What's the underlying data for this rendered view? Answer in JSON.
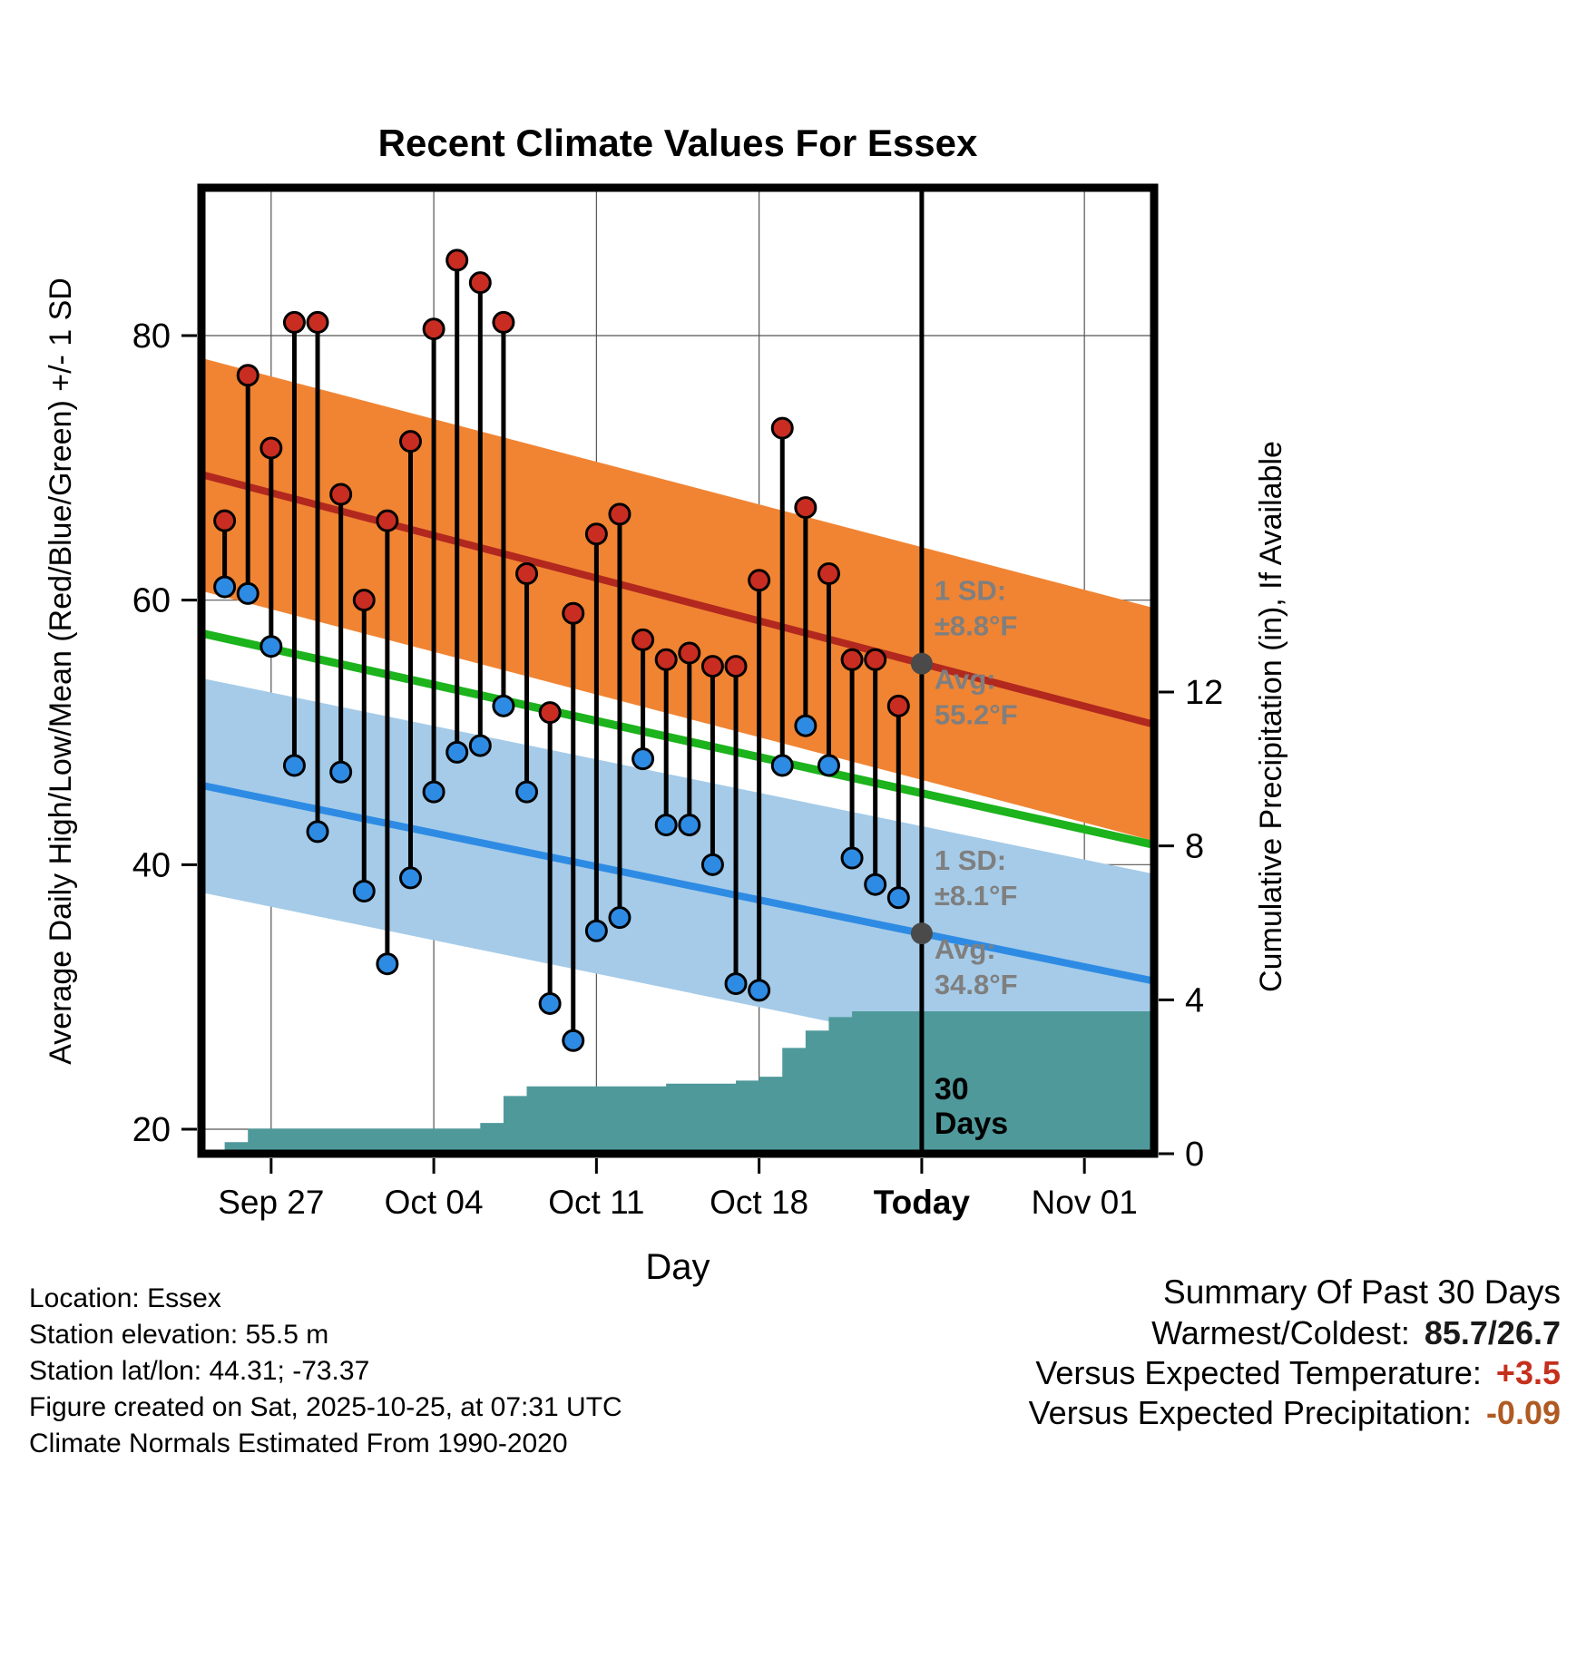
{
  "title": "Recent Climate Values For Essex",
  "chart_data": {
    "type": "line",
    "title": "Recent Climate Values For Essex",
    "xlabel": "Day",
    "ylabel_left": "Average Daily High/Low/Mean (Red/Blue/Green) +/- 1 SD",
    "ylabel_right": "Cumulative Precipitation (in), If Available",
    "grid": true,
    "x_domain": {
      "min": 0,
      "max": 41
    },
    "x_ticks": [
      {
        "day": 3,
        "label": "Sep 27",
        "bold": false
      },
      {
        "day": 10,
        "label": "Oct 04",
        "bold": false
      },
      {
        "day": 17,
        "label": "Oct 11",
        "bold": false
      },
      {
        "day": 24,
        "label": "Oct 18",
        "bold": false
      },
      {
        "day": 31,
        "label": "Today",
        "bold": true
      },
      {
        "day": 38,
        "label": "Nov 01",
        "bold": false
      }
    ],
    "y_left_ticks": [
      20,
      40,
      60,
      80
    ],
    "y_left_range": [
      18.1,
      91.2
    ],
    "y_right_ticks": [
      0,
      4,
      8,
      12
    ],
    "y_right_range": [
      0,
      14.7
    ],
    "today_day": 31,
    "normal_high": {
      "value_start": 69.5,
      "value_end": 50.6,
      "sd": 8.8
    },
    "normal_mean": {
      "value_start": 57.5,
      "value_end": 41.5
    },
    "normal_low": {
      "value_start": 46.0,
      "value_end": 31.2,
      "sd": 8.1
    },
    "daily": {
      "start_day": 1,
      "highs": [
        66,
        77,
        71.5,
        81,
        81,
        68,
        60,
        66,
        72,
        80.5,
        85.7,
        84,
        81,
        62,
        51.5,
        59,
        65,
        66.5,
        57,
        55.5,
        56,
        55,
        55,
        61.5,
        73,
        67,
        62,
        55.5,
        55.5,
        52
      ],
      "lows": [
        61,
        60.5,
        56.5,
        47.5,
        42.5,
        47,
        38,
        32.5,
        39,
        45.5,
        48.5,
        49,
        52,
        45.5,
        29.5,
        26.7,
        35,
        36,
        48,
        43,
        43,
        40,
        31,
        30.5,
        47.5,
        50.5,
        47.5,
        40.5,
        38.5,
        37.5
      ]
    },
    "precip_steps": [
      [
        0,
        0.05
      ],
      [
        1,
        0.3
      ],
      [
        2,
        0.65
      ],
      [
        12,
        0.8
      ],
      [
        13,
        1.5
      ],
      [
        14,
        1.75
      ],
      [
        20,
        1.82
      ],
      [
        23,
        1.9
      ],
      [
        24,
        2.0
      ],
      [
        25,
        2.75
      ],
      [
        26,
        3.2
      ],
      [
        27,
        3.55
      ],
      [
        28,
        3.7
      ]
    ],
    "annotations": {
      "high": {
        "sd_label": "1 SD:",
        "sd_text": "±8.8°F",
        "avg_label": "Avg:",
        "avg_text": "55.2°F",
        "avg_value": 55.2
      },
      "low": {
        "sd_label": "1 SD:",
        "sd_text": "±8.1°F",
        "avg_label": "Avg:",
        "avg_text": "34.8°F",
        "avg_value": 34.8
      },
      "period_line1": "30",
      "period_line2": "Days"
    },
    "colors": {
      "high_band": "#f08433",
      "high_line": "#b2281e",
      "low_band": "#a5cbe8",
      "low_line": "#2e8be4",
      "mean_line": "#1cb31c",
      "precip_fill": "#4f999b",
      "dot_high": "#c92d22",
      "dot_low": "#2e8be4",
      "annotation_gray": "#7f7f7f",
      "today_marker": "#4a4a4a"
    }
  },
  "footer_left": {
    "lines": [
      "Location: Essex",
      "Station elevation: 55.5 m",
      "Station lat/lon: 44.31; -73.37",
      "Figure created on Sat, 2025-10-25, at 07:31 UTC",
      "Climate Normals Estimated From 1990-2020"
    ]
  },
  "summary": {
    "title": "Summary Of Past 30 Days",
    "rows": [
      {
        "label": "Warmest/Coldest:",
        "value": "85.7/26.7",
        "value_color": "#1a1a1a"
      },
      {
        "label": "Versus Expected Temperature:",
        "value": "+3.5",
        "value_color": "#c5301c"
      },
      {
        "label": "Versus Expected Precipitation:",
        "value": "-0.09",
        "value_color": "#b05a23"
      }
    ]
  }
}
